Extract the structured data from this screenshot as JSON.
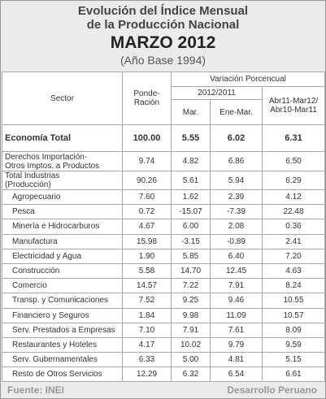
{
  "header": {
    "title_line1": "Evolución del Índice Mensual",
    "title_line2": "de la Producción Nacional",
    "period": "MARZO 2012",
    "base": "(Año Base 1994)"
  },
  "table": {
    "columns": {
      "sector": "Sector",
      "weight": "Ponde-\nRación",
      "variation": "Variación Porcencual",
      "year": "2012/2011",
      "month": "Mar.",
      "ytd": "Ene-Mar.",
      "annual": "Abr11-Mar12/\nAbr10-Mar11"
    },
    "rows": [
      [
        "Economía Total",
        "100.00",
        "5.55",
        "6.02",
        "6.31"
      ],
      [
        "Derechos Importación-\nOtros Imptos. a Productos",
        "9.74",
        "4.82",
        "6.86",
        "6.50"
      ],
      [
        "Total Industrias\n(Producción)",
        "90.26",
        "5.61",
        "5.94",
        "6.29"
      ],
      [
        "Agropecuario",
        "7.60",
        "1.62",
        "2.39",
        "4.12"
      ],
      [
        "Pesca",
        "0.72",
        "-15.07",
        "-7.39",
        "22.48"
      ],
      [
        "Minería e Hidrocarburos",
        "4.67",
        "6.00",
        "2.08",
        "0.36"
      ],
      [
        "Manufactura",
        "15.98",
        "-3.15",
        "-0.89",
        "2.41"
      ],
      [
        "Electricidad y Agua",
        "1.90",
        "5.85",
        "6.40",
        "7.20"
      ],
      [
        "Construcción",
        "5.58",
        "14.70",
        "12.45",
        "4.63"
      ],
      [
        "Comercio",
        "14.57",
        "7.22",
        "7.91",
        "8.24"
      ],
      [
        "Transp. y Comunicaciones",
        "7.52",
        "9.25",
        "9.46",
        "10.55"
      ],
      [
        "Financiero y Seguros",
        "1.84",
        "9.98",
        "11.09",
        "10.57"
      ],
      [
        "Serv. Prestados a Empresas",
        "7.10",
        "7.91",
        "7.61",
        "8.09"
      ],
      [
        "Restaurantes y Hoteles",
        "4.17",
        "10.02",
        "9.79",
        "9.59"
      ],
      [
        "Serv. Gubernamentales",
        "6.33",
        "5.00",
        "4.81",
        "5.15"
      ],
      [
        "Resto de Otros Servicios",
        "12.29",
        "6.32",
        "6.54",
        "6.61"
      ]
    ]
  },
  "footer": {
    "source": "Fuente: INEI",
    "site": "Desarrollo Peruano"
  }
}
